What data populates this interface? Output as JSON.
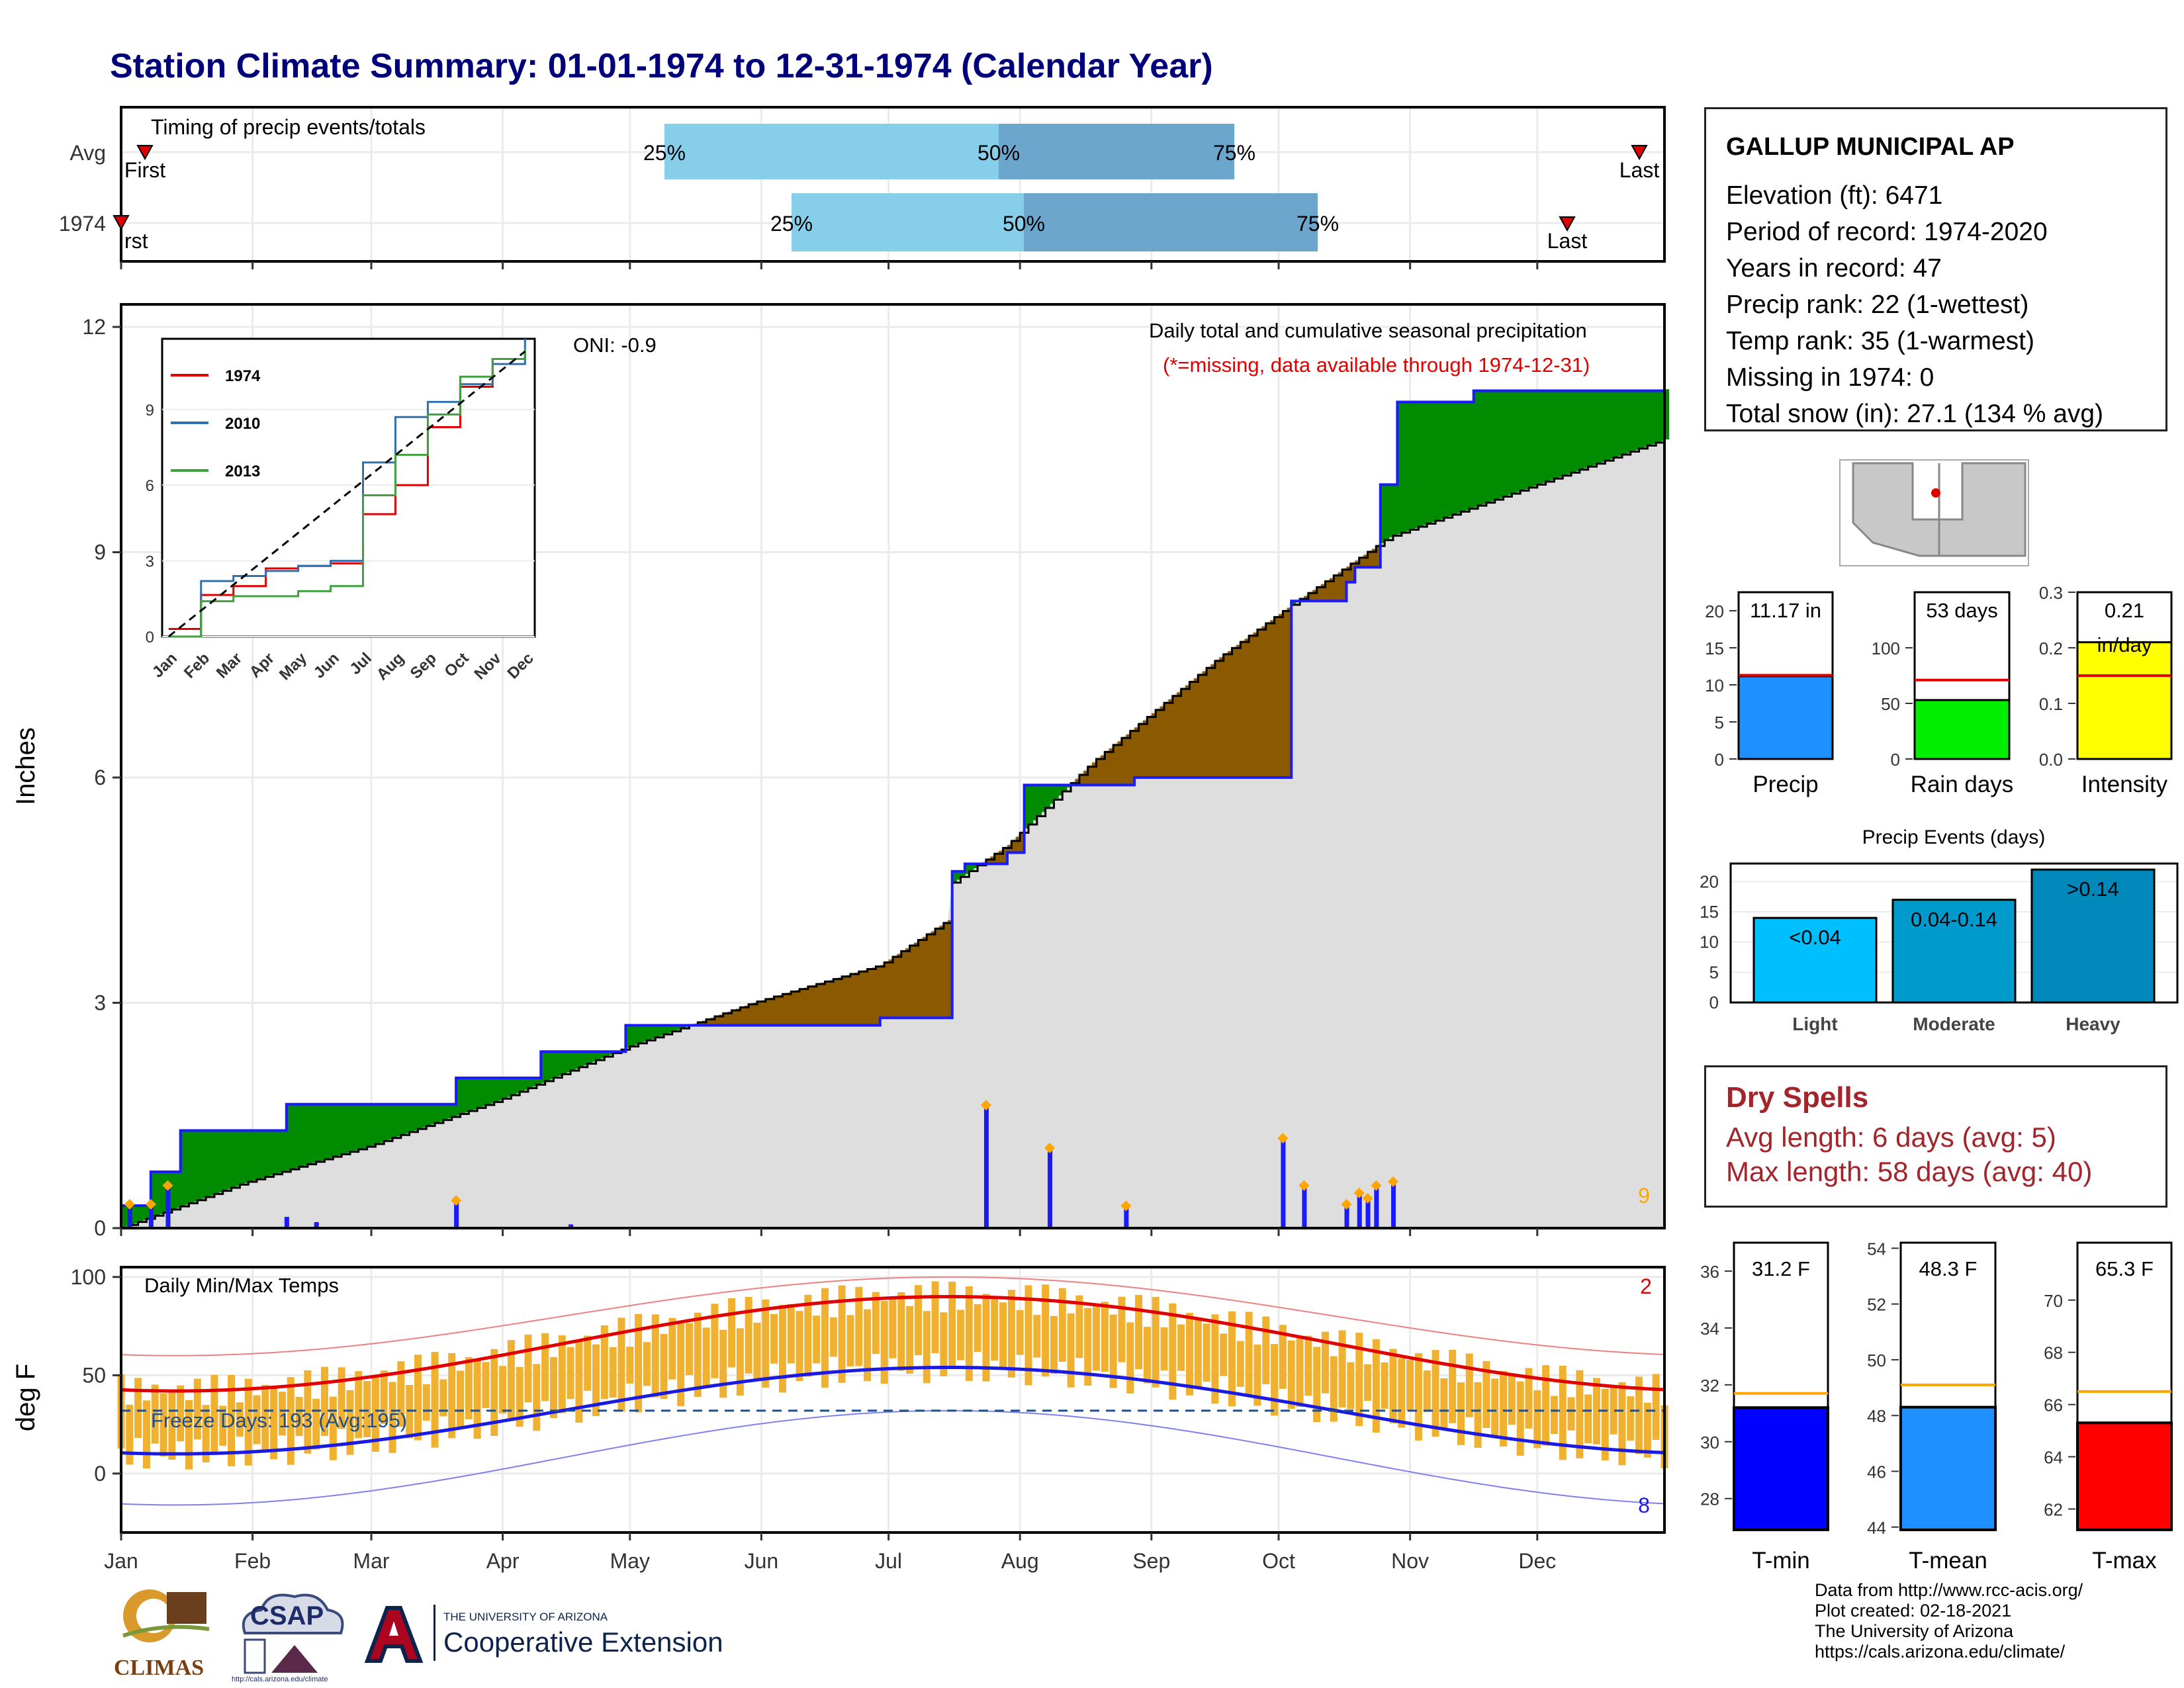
{
  "title": "Station Climate Summary: 01-01-1974 to 12-31-1974 (Calendar Year)",
  "station": {
    "name": "GALLUP MUNICIPAL AP",
    "lines": [
      "Elevation (ft): 6471",
      "Period of record: 1974-2020",
      "Years in record: 47",
      "Precip rank: 22 (1-wettest)",
      "Temp rank: 35 (1-warmest)",
      "Missing in 1974: 0",
      "Total snow (in): 27.1 (134 % avg)"
    ]
  },
  "timing": {
    "title": "Timing of precip events/totals",
    "rows": [
      "Avg",
      "1974"
    ],
    "markers": {
      "first": "First",
      "first_1974": "rst",
      "last": "Last",
      "p25": "25%",
      "p50": "50%",
      "p75": "75%"
    }
  },
  "months": [
    "Jan",
    "Feb",
    "Mar",
    "Apr",
    "May",
    "Jun",
    "Jul",
    "Aug",
    "Sep",
    "Oct",
    "Nov",
    "Dec"
  ],
  "main": {
    "ylabel": "Inches",
    "yticks": [
      "0",
      "3",
      "6",
      "9",
      "12"
    ],
    "oni": "ONI: -0.9",
    "subtitle": "Daily total and cumulative seasonal precipitation",
    "missing_note": "(*=missing, data available through 1974-12-31)",
    "count_label": "9"
  },
  "inset": {
    "months": [
      "Jan",
      "Feb",
      "Mar",
      "Apr",
      "May",
      "Jun",
      "Jul",
      "Aug",
      "Sep",
      "Oct",
      "Nov",
      "Dec"
    ],
    "yticks": [
      "0",
      "3",
      "6",
      "9"
    ],
    "legend": [
      "1974",
      "2010",
      "2013"
    ]
  },
  "temps": {
    "ylabel": "deg F",
    "title": "Daily Min/Max Temps",
    "yticks": [
      "0",
      "50",
      "100"
    ],
    "freeze": "Freeze Days: 193 (Avg:195)",
    "hi_count": "2",
    "lo_count": "8"
  },
  "right_bars": {
    "precip": {
      "label": "Precip",
      "value_text": "11.17 in",
      "value": 11.17,
      "avg": 11.3,
      "yticks": [
        "0",
        "5",
        "10",
        "15",
        "20"
      ]
    },
    "rain_days": {
      "label": "Rain days",
      "value_text": "53 days",
      "value": 53,
      "avg": 71,
      "yticks": [
        "0",
        "50",
        "100"
      ]
    },
    "intensity": {
      "label": "Intensity",
      "value_text": "0.21",
      "unit": "in/day",
      "value": 0.21,
      "avg": 0.15,
      "yticks": [
        "0.0",
        "0.1",
        "0.2",
        "0.3"
      ]
    }
  },
  "events": {
    "title": "Precip Events (days)",
    "categories": [
      "Light",
      "Moderate",
      "Heavy"
    ],
    "labels": [
      "<0.04",
      "0.04-0.14",
      ">0.14"
    ],
    "values": [
      14,
      17,
      22
    ],
    "yticks": [
      "0",
      "5",
      "10",
      "15",
      "20"
    ]
  },
  "dry_spells": {
    "title": "Dry Spells",
    "avg_length": "Avg length: 6 days (avg: 5)",
    "max_length": "Max length: 58 days (avg: 40)"
  },
  "temp_bars": {
    "tmin": {
      "label": "T-min",
      "value_text": "31.2 F",
      "value": 31.2,
      "avg": 31.7,
      "yticks": [
        "28",
        "30",
        "32",
        "34",
        "36"
      ]
    },
    "tmean": {
      "label": "T-mean",
      "value_text": "48.3 F",
      "value": 48.3,
      "avg": 49.1,
      "yticks": [
        "44",
        "46",
        "48",
        "50",
        "52",
        "54"
      ]
    },
    "tmax": {
      "label": "T-max",
      "value_text": "65.3 F",
      "value": 65.3,
      "avg": 66.5,
      "yticks": [
        "62",
        "64",
        "66",
        "68",
        "70"
      ]
    }
  },
  "footer": {
    "lines": [
      "Data from http://www.rcc-acis.org/",
      "Plot created: 02-18-2021",
      "The University of Arizona",
      "https://cals.arizona.edu/climate/"
    ]
  },
  "logos": {
    "climas": "CLIMAS",
    "csap": "CSAP",
    "csap_url": "http://cals.arizona.edu/climate",
    "ua_small": "THE UNIVERSITY OF ARIZONA",
    "ua_big": "Cooperative Extension"
  },
  "chart_data": [
    {
      "type": "area",
      "title": "Daily total and cumulative seasonal precipitation",
      "ylabel": "Inches",
      "ylim": [
        0,
        12.3
      ],
      "cumulative_1974": {
        "doy": [
          1,
          8,
          15,
          40,
          80,
          100,
          120,
          180,
          197,
          200,
          210,
          214,
          240,
          277,
          290,
          292,
          298,
          302,
          320,
          365
        ],
        "inches": [
          0.3,
          0.75,
          1.3,
          1.65,
          2.0,
          2.35,
          2.7,
          2.8,
          4.75,
          4.85,
          5.0,
          5.9,
          6.0,
          8.35,
          8.6,
          8.8,
          9.9,
          11.0,
          11.15,
          11.17
        ]
      },
      "cumulative_avg": {
        "doy": [
          1,
          30,
          60,
          90,
          120,
          150,
          180,
          196,
          197,
          210,
          230,
          260,
          277,
          300,
          330,
          365
        ],
        "inches": [
          0.0,
          0.6,
          1.1,
          1.7,
          2.4,
          3.0,
          3.5,
          4.1,
          4.6,
          5.1,
          6.2,
          7.6,
          8.3,
          9.2,
          9.8,
          10.5
        ]
      },
      "daily_events": {
        "doy": [
          3,
          8,
          12,
          40,
          47,
          80,
          107,
          205,
          220,
          238,
          275,
          280,
          290,
          293,
          295,
          297,
          301
        ],
        "inches": [
          0.3,
          0.3,
          0.55,
          0.15,
          0.08,
          0.35,
          0.05,
          1.62,
          1.05,
          0.28,
          1.18,
          0.55,
          0.3,
          0.45,
          0.38,
          0.55,
          0.6
        ]
      }
    },
    {
      "type": "line",
      "title": "Daily Min/Max Temps",
      "ylim": [
        -30,
        105
      ],
      "series": [
        {
          "name": "1974",
          "values": [
            0.3,
            1.65,
            2.0,
            2.7,
            2.8,
            2.9,
            4.85,
            6.0,
            8.3,
            9.9,
            11.0,
            11.17
          ]
        },
        {
          "name": "2010",
          "values": [
            0.0,
            2.2,
            2.4,
            2.6,
            2.8,
            3.0,
            6.9,
            8.7,
            9.3,
            10.0,
            10.8,
            11.8
          ]
        },
        {
          "name": "2013",
          "values": [
            0.0,
            1.4,
            1.6,
            1.6,
            1.8,
            2.0,
            5.6,
            7.2,
            8.8,
            10.3,
            11.0,
            11.4
          ]
        }
      ],
      "categories": [
        "Jan",
        "Feb",
        "Mar",
        "Apr",
        "May",
        "Jun",
        "Jul",
        "Aug",
        "Sep",
        "Oct",
        "Nov",
        "Dec"
      ]
    },
    {
      "type": "bar",
      "title": "Precip Events (days)",
      "categories": [
        "Light",
        "Moderate",
        "Heavy"
      ],
      "values": [
        14,
        17,
        22
      ],
      "ylim": [
        0,
        23
      ]
    }
  ]
}
